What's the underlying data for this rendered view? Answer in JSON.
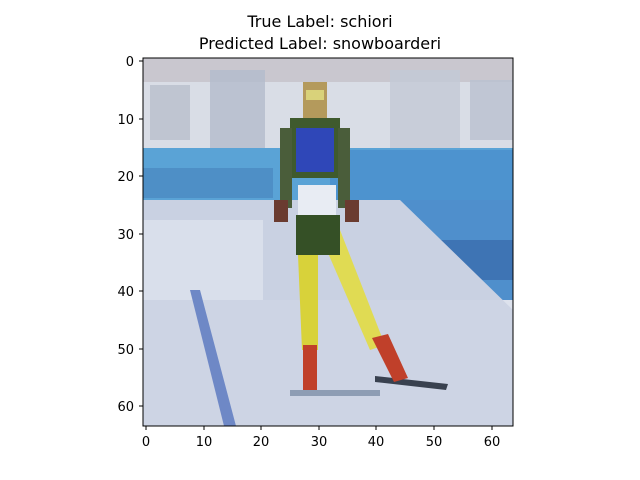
{
  "title": {
    "line1": "True Label: schiori",
    "line2": "Predicted Label: snowboarderi"
  },
  "image": {
    "description": "Pixelated 64x64 photo of a cross-country skier in a green/yellow suit with a blue bib, skiing toward the camera on a snowy course with blue stadium boards behind.",
    "grid_size": 64
  },
  "axes": {
    "x_ticks": [
      "0",
      "10",
      "20",
      "30",
      "40",
      "50",
      "60"
    ],
    "y_ticks": [
      "0",
      "10",
      "20",
      "30",
      "40",
      "50",
      "60"
    ]
  },
  "colors": {
    "sky": "#d9dde6",
    "boards": "#5aa3d6",
    "snow": "#c9d1e2",
    "suit_green": "#3f5a2e",
    "suit_yellow": "#d8d23a",
    "bib_blue": "#2f47b8",
    "red_boots": "#c0402a",
    "ski_dark": "#39414f"
  }
}
